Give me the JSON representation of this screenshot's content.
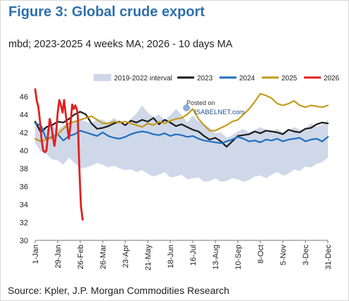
{
  "title": "Figure 3: Global crude export",
  "subtitle": "mbd; 2023-2025 4 weeks MA; 2026 - 10 days MA",
  "source": "Source: Kpler, J.P. Morgan Commodities Research",
  "watermark": {
    "line1": "Posted on",
    "line2": "ISABELNET.com"
  },
  "chart_data": {
    "type": "line",
    "title": "",
    "xlabel": "",
    "ylabel": "",
    "ylim": [
      30,
      47
    ],
    "yticks": [
      30,
      32,
      34,
      36,
      38,
      40,
      42,
      44,
      46
    ],
    "xlim_day": [
      1,
      365
    ],
    "xticks": [
      {
        "day": 1,
        "label": "1-Jan"
      },
      {
        "day": 29,
        "label": "29-Jan"
      },
      {
        "day": 57,
        "label": "26-Feb"
      },
      {
        "day": 85,
        "label": "26-Mar"
      },
      {
        "day": 113,
        "label": "23-Apr"
      },
      {
        "day": 141,
        "label": "21-May"
      },
      {
        "day": 169,
        "label": "18-Jun"
      },
      {
        "day": 197,
        "label": "16-Jul"
      },
      {
        "day": 225,
        "label": "13-Aug"
      },
      {
        "day": 253,
        "label": "10-Sep"
      },
      {
        "day": 281,
        "label": "8-Oct"
      },
      {
        "day": 309,
        "label": "5-Nov"
      },
      {
        "day": 337,
        "label": "3-Dec"
      },
      {
        "day": 365,
        "label": "31-Dec"
      }
    ],
    "grid": false,
    "legend_position": "top",
    "band": {
      "name": "2019-2022 interval",
      "color": "#cfd8e8",
      "x": [
        1,
        8,
        15,
        22,
        29,
        36,
        43,
        50,
        57,
        64,
        71,
        78,
        85,
        92,
        99,
        106,
        113,
        120,
        127,
        134,
        141,
        148,
        155,
        162,
        169,
        176,
        183,
        190,
        197,
        204,
        211,
        218,
        225,
        232,
        239,
        246,
        253,
        260,
        267,
        274,
        281,
        288,
        295,
        302,
        309,
        316,
        323,
        330,
        337,
        344,
        351,
        358,
        365
      ],
      "low": [
        40.8,
        39.9,
        39.6,
        39.0,
        38.9,
        38.4,
        39.2,
        38.6,
        38.0,
        38.1,
        38.3,
        38.6,
        38.4,
        38.1,
        38.3,
        38.0,
        37.8,
        37.9,
        37.6,
        37.8,
        37.4,
        37.1,
        37.3,
        37.6,
        37.0,
        37.1,
        37.3,
        36.8,
        36.9,
        37.0,
        36.5,
        36.6,
        36.9,
        36.5,
        36.6,
        36.9,
        36.8,
        36.5,
        36.7,
        37.1,
        37.2,
        36.9,
        37.3,
        37.6,
        37.2,
        37.4,
        37.9,
        37.7,
        38.2,
        38.1,
        38.5,
        38.7,
        39.2
      ],
      "high": [
        43.0,
        42.8,
        42.4,
        42.7,
        42.3,
        42.8,
        43.0,
        43.1,
        43.4,
        43.2,
        43.0,
        43.5,
        43.4,
        43.1,
        43.6,
        43.2,
        42.8,
        43.5,
        44.1,
        45.0,
        44.2,
        43.7,
        44.0,
        43.4,
        43.9,
        44.6,
        44.0,
        43.1,
        43.9,
        43.2,
        42.9,
        42.5,
        41.9,
        42.0,
        41.4,
        41.7,
        42.1,
        42.4,
        42.0,
        42.3,
        42.6,
        42.3,
        42.1,
        42.4,
        42.0,
        42.2,
        42.6,
        42.3,
        42.4,
        43.0,
        42.6,
        42.9,
        43.4
      ]
    },
    "series": [
      {
        "name": "2023",
        "color": "#1a1a1a",
        "x": [
          1,
          8,
          15,
          22,
          29,
          36,
          43,
          50,
          57,
          64,
          71,
          78,
          85,
          92,
          99,
          106,
          113,
          120,
          127,
          134,
          141,
          148,
          155,
          162,
          169,
          176,
          183,
          190,
          197,
          204,
          211,
          218,
          225,
          232,
          239,
          246,
          253,
          260,
          267,
          274,
          281,
          288,
          295,
          302,
          309,
          316,
          323,
          330,
          337,
          344,
          351,
          358,
          365
        ],
        "y": [
          43.2,
          42.0,
          42.6,
          42.8,
          43.2,
          43.1,
          43.5,
          44.0,
          44.3,
          44.0,
          43.0,
          42.4,
          42.5,
          42.7,
          43.0,
          43.2,
          42.8,
          43.3,
          43.1,
          43.4,
          43.2,
          43.6,
          42.9,
          43.4,
          43.1,
          42.7,
          42.9,
          42.6,
          42.3,
          42.1,
          41.6,
          41.2,
          41.4,
          41.0,
          40.4,
          41.0,
          41.6,
          41.7,
          41.8,
          42.1,
          41.9,
          42.2,
          42.1,
          42.0,
          41.8,
          42.3,
          42.1,
          42.0,
          42.4,
          42.5,
          42.9,
          43.1,
          43.0
        ]
      },
      {
        "name": "2024",
        "color": "#1f6fbf",
        "x": [
          1,
          8,
          15,
          22,
          29,
          36,
          43,
          50,
          57,
          64,
          71,
          78,
          85,
          92,
          99,
          106,
          113,
          120,
          127,
          134,
          141,
          148,
          155,
          162,
          169,
          176,
          183,
          190,
          197,
          204,
          211,
          218,
          225,
          232,
          239,
          246,
          253,
          260,
          267,
          274,
          281,
          288,
          295,
          302,
          309,
          316,
          323,
          330,
          337,
          344,
          351,
          358,
          365
        ],
        "y": [
          43.0,
          42.8,
          41.2,
          41.5,
          41.8,
          41.1,
          41.6,
          41.8,
          42.2,
          42.0,
          41.8,
          41.6,
          42.0,
          41.6,
          41.4,
          41.3,
          41.5,
          41.8,
          42.0,
          42.1,
          42.0,
          41.8,
          41.7,
          41.9,
          41.6,
          41.8,
          41.7,
          41.5,
          41.6,
          41.3,
          41.1,
          41.0,
          40.9,
          40.8,
          41.0,
          41.2,
          41.5,
          41.3,
          41.0,
          41.1,
          40.9,
          41.2,
          41.1,
          41.3,
          41.0,
          41.2,
          41.3,
          41.4,
          41.0,
          41.2,
          41.3,
          41.0,
          41.5
        ]
      },
      {
        "name": "2025",
        "color": "#c49a1a",
        "x": [
          1,
          8,
          15,
          22,
          29,
          36,
          43,
          50,
          57,
          64,
          71,
          78,
          85,
          92,
          99,
          106,
          113,
          120,
          127,
          134,
          141,
          148,
          155,
          162,
          169,
          176,
          183,
          190,
          197,
          204,
          211,
          218,
          225,
          232,
          239,
          246,
          253,
          260,
          267,
          274,
          281,
          288,
          295,
          302,
          309,
          316,
          323,
          330,
          337,
          344,
          351,
          358,
          365
        ],
        "y": [
          41.3,
          41.0,
          41.2,
          41.4,
          41.8,
          42.4,
          43.0,
          43.2,
          43.4,
          43.6,
          43.8,
          43.4,
          43.0,
          43.0,
          43.2,
          43.1,
          43.2,
          43.0,
          42.8,
          42.6,
          43.0,
          42.8,
          43.2,
          43.0,
          43.3,
          43.5,
          43.6,
          44.0,
          44.6,
          43.5,
          42.8,
          42.2,
          42.2,
          42.5,
          42.8,
          43.2,
          43.4,
          44.0,
          44.6,
          45.4,
          46.3,
          46.1,
          45.8,
          45.2,
          45.0,
          45.2,
          45.5,
          45.0,
          44.8,
          45.0,
          44.9,
          44.8,
          45.0
        ]
      },
      {
        "name": "2026",
        "color": "#e02020",
        "x": [
          1,
          3,
          5,
          7,
          9,
          11,
          13,
          15,
          17,
          19,
          21,
          23,
          25,
          27,
          29,
          31,
          33,
          35,
          37,
          39,
          41,
          43,
          45,
          47,
          49,
          51,
          53,
          54,
          55,
          56,
          57,
          58,
          59,
          60
        ],
        "y": [
          46.8,
          45.5,
          44.8,
          43.2,
          41.2,
          40.0,
          39.8,
          40.0,
          41.8,
          43.5,
          42.8,
          41.5,
          40.5,
          41.8,
          44.2,
          45.6,
          45.0,
          44.2,
          45.6,
          44.0,
          42.6,
          41.3,
          43.0,
          45.1,
          44.6,
          45.0,
          44.5,
          43.8,
          40.5,
          37.8,
          35.6,
          33.8,
          33.0,
          32.3
        ]
      }
    ]
  }
}
